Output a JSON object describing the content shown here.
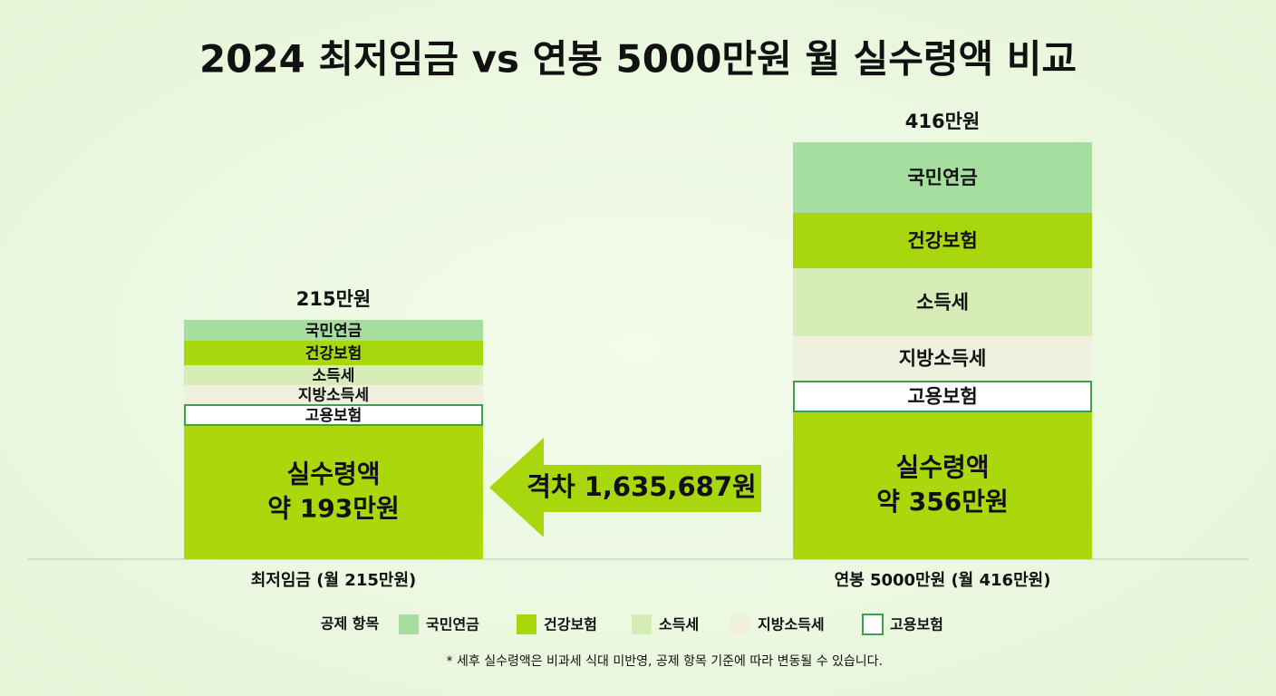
{
  "title": "2024 최저임금 vs 연봉 5000만원 월 실수령액 비교",
  "bars": [
    {
      "total": "215만원",
      "segments": [
        "국민연금",
        "건강보험",
        "소득세",
        "지방소득세",
        "고용보험"
      ],
      "net": [
        "실수령액",
        "약 193만원"
      ],
      "caption": "최저임금 (월 215만원)"
    },
    {
      "total": "416만원",
      "segments": [
        "국민연금",
        "건강보험",
        "소득세",
        "지방소득세",
        "고용보험"
      ],
      "net": [
        "실수령액",
        "약 356만원"
      ],
      "caption": "연봉 5000만원 (월 416만원)"
    }
  ],
  "gap": "격차 1,635,687원",
  "legend": {
    "title": "공제 항목",
    "items": [
      "국민연금",
      "건강보험",
      "소득세",
      "지방소득세",
      "고용보험"
    ]
  },
  "footnote": "* 세후 실수령액은 비과세 식대 미반영, 공제 항목 기준에 따라 변동될 수 있습니다."
}
